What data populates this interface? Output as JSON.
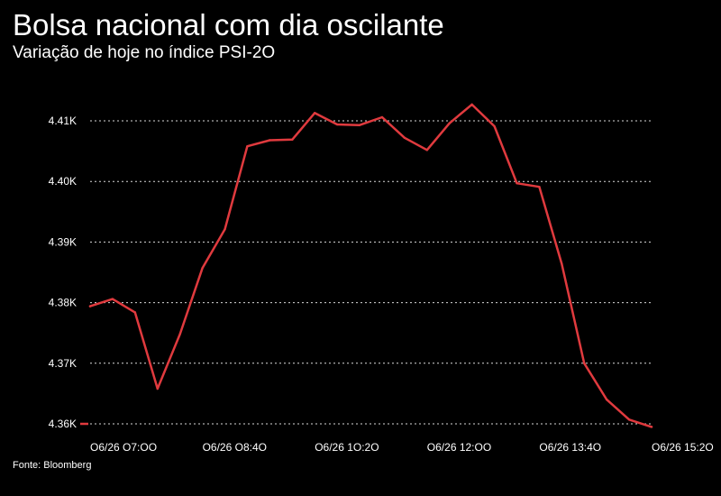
{
  "title": "Bolsa nacional com dia oscilante",
  "subtitle": "Variação de hoje no índice PSI-2O",
  "source": "Fonte: Bloomberg",
  "colors": {
    "background": "#000000",
    "line": "#e03a3e",
    "text": "#ffffff",
    "grid": "#d9d9d9"
  },
  "chart_data": {
    "type": "line",
    "title": "Bolsa nacional com dia oscilante",
    "subtitle": "Variação de hoje no índice PSI-2O",
    "xlabel": "",
    "ylabel": "",
    "ylim": [
      4360,
      4410
    ],
    "grid": true,
    "legend": "none",
    "y_ticks": [
      {
        "value": 4360,
        "label": "4.36K"
      },
      {
        "value": 4370,
        "label": "4.37K"
      },
      {
        "value": 4380,
        "label": "4.38K"
      },
      {
        "value": 4390,
        "label": "4.39K"
      },
      {
        "value": 4400,
        "label": "4.40K"
      },
      {
        "value": 4410,
        "label": "4.41K"
      }
    ],
    "x_ticks": [
      {
        "value": 0,
        "label": "O6/26 O7:OO"
      },
      {
        "value": 100,
        "label": "O6/26 O8:4O"
      },
      {
        "value": 200,
        "label": "O6/26 1O:2O"
      },
      {
        "value": 300,
        "label": "O6/26 12:OO"
      },
      {
        "value": 400,
        "label": "O6/26 13:4O"
      },
      {
        "value": 500,
        "label": "O6/26 15:2O"
      }
    ],
    "series": [
      {
        "x": [
          0,
          20,
          40,
          60,
          80,
          100,
          120,
          140,
          160,
          180,
          200,
          220,
          240,
          260,
          280,
          300,
          320,
          340,
          360,
          380,
          400,
          420,
          440,
          460,
          480,
          500
        ],
        "values": [
          4379.4,
          4380.6,
          4378.4,
          4365.8,
          4374.8,
          4385.7,
          4392.1,
          4405.8,
          4406.8,
          4406.9,
          4411.3,
          4409.4,
          4409.3,
          4410.6,
          4407.2,
          4405.2,
          4409.6,
          4412.7,
          4409.1,
          4399.7,
          4399.1,
          4386.4,
          4370.0,
          4364.0,
          4360.7,
          4359.5
        ]
      }
    ]
  }
}
